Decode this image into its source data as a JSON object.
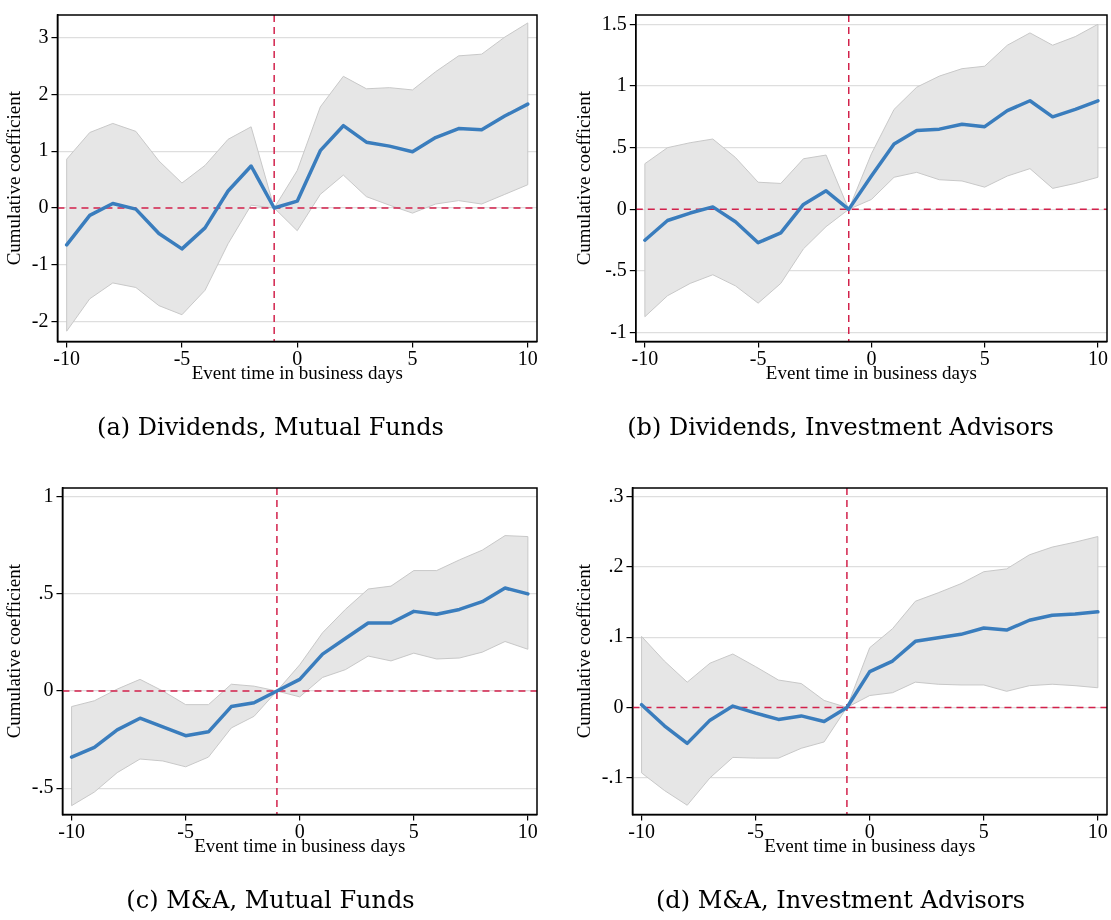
{
  "chart_data": [
    {
      "type": "line",
      "title": "(a) Dividends, Mutual Funds",
      "xlabel": "Event time in business days",
      "ylabel": "Cumulative coefficient",
      "x": [
        -10,
        -9,
        -8,
        -7,
        -6,
        -5,
        -4,
        -3,
        -2,
        -1,
        0,
        1,
        2,
        3,
        4,
        5,
        6,
        7,
        8,
        9,
        10
      ],
      "series": [
        {
          "color": "#3a7dbd",
          "values": [
            -0.65,
            -0.13,
            0.08,
            -0.02,
            -0.45,
            -0.72,
            -0.35,
            0.3,
            0.74,
            0,
            0.12,
            1.01,
            1.45,
            1.16,
            1.09,
            0.99,
            1.24,
            1.4,
            1.38,
            1.62,
            1.83
          ],
          "lower": [
            -2.17,
            -1.6,
            -1.32,
            -1.4,
            -1.72,
            -1.88,
            -1.45,
            -0.63,
            0.05,
            0,
            -0.4,
            0.24,
            0.58,
            0.2,
            0.05,
            -0.09,
            0.07,
            0.13,
            0.07,
            0.24,
            0.41
          ],
          "upper": [
            0.86,
            1.33,
            1.49,
            1.35,
            0.83,
            0.44,
            0.75,
            1.21,
            1.43,
            0,
            0.66,
            1.78,
            2.32,
            2.1,
            2.12,
            2.08,
            2.4,
            2.68,
            2.71,
            3.01,
            3.26
          ]
        }
      ],
      "xlim": [
        -10.4,
        10.4
      ],
      "xticks": [
        -10,
        -5,
        0,
        5,
        10
      ],
      "ylim": [
        -2.35,
        3.4
      ],
      "yticks": [
        -2,
        -1,
        0,
        1,
        2,
        3
      ],
      "grid": "y",
      "marker": "none",
      "ref_lines": [
        {
          "axis": "x",
          "value": -1,
          "color": "#d2214b",
          "line_style": "dashed"
        },
        {
          "axis": "y",
          "value": 0,
          "color": "#d2214b",
          "line_style": "dashed"
        }
      ]
    },
    {
      "type": "line",
      "title": "(b) Dividends, Investment Advisors",
      "xlabel": "Event time in business days",
      "ylabel": "Cumulative coefficient",
      "x": [
        -10,
        -9,
        -8,
        -7,
        -6,
        -5,
        -4,
        -3,
        -2,
        -1,
        0,
        1,
        2,
        3,
        4,
        5,
        6,
        7,
        8,
        9,
        10
      ],
      "series": [
        {
          "color": "#3a7dbd",
          "values": [
            -0.25,
            -0.09,
            -0.03,
            0.02,
            -0.1,
            -0.27,
            -0.19,
            0.04,
            0.15,
            0,
            0.27,
            0.53,
            0.64,
            0.65,
            0.69,
            0.67,
            0.8,
            0.88,
            0.75,
            0.81,
            0.88
          ],
          "lower": [
            -0.87,
            -0.7,
            -0.6,
            -0.53,
            -0.62,
            -0.76,
            -0.6,
            -0.32,
            -0.14,
            0,
            0.08,
            0.26,
            0.3,
            0.24,
            0.23,
            0.18,
            0.27,
            0.33,
            0.17,
            0.21,
            0.26
          ],
          "upper": [
            0.37,
            0.5,
            0.54,
            0.57,
            0.42,
            0.22,
            0.21,
            0.41,
            0.44,
            0,
            0.45,
            0.81,
            0.99,
            1.08,
            1.14,
            1.16,
            1.33,
            1.43,
            1.33,
            1.4,
            1.5
          ]
        }
      ],
      "xlim": [
        -10.4,
        10.4
      ],
      "xticks": [
        -10,
        -5,
        0,
        5,
        10
      ],
      "ylim": [
        -1.07,
        1.575
      ],
      "yticks": [
        -1,
        {
          "value": -0.5,
          "label": "-.5"
        },
        0,
        {
          "value": 0.5,
          "label": ".5"
        },
        1,
        1.5
      ],
      "grid": "y",
      "marker": "none",
      "ref_lines": [
        {
          "axis": "x",
          "value": -1,
          "color": "#d2214b",
          "line_style": "dashed"
        },
        {
          "axis": "y",
          "value": 0,
          "color": "#d2214b",
          "line_style": "dashed"
        }
      ]
    },
    {
      "type": "line",
      "title": "(c) M&A, Mutual Funds",
      "xlabel": "Event time in business days",
      "ylabel": "Cumulative coefficient",
      "x": [
        -10,
        -9,
        -8,
        -7,
        -6,
        -5,
        -4,
        -3,
        -2,
        -1,
        0,
        1,
        2,
        3,
        4,
        5,
        6,
        7,
        8,
        9,
        10
      ],
      "series": [
        {
          "color": "#3a7dbd",
          "values": [
            -0.34,
            -0.29,
            -0.2,
            -0.14,
            -0.185,
            -0.23,
            -0.21,
            -0.08,
            -0.06,
            0,
            0.06,
            0.19,
            0.27,
            0.35,
            0.35,
            0.41,
            0.395,
            0.42,
            0.46,
            0.53,
            0.5
          ],
          "lower": [
            -0.59,
            -0.52,
            -0.42,
            -0.35,
            -0.36,
            -0.39,
            -0.34,
            -0.19,
            -0.13,
            0,
            -0.03,
            0.07,
            0.11,
            0.18,
            0.155,
            0.195,
            0.165,
            0.17,
            0.2,
            0.255,
            0.215
          ],
          "upper": [
            -0.08,
            -0.05,
            0.01,
            0.06,
            0.0,
            -0.07,
            -0.07,
            0.035,
            0.025,
            0,
            0.135,
            0.3,
            0.42,
            0.525,
            0.54,
            0.62,
            0.62,
            0.675,
            0.725,
            0.8,
            0.795
          ]
        }
      ],
      "xlim": [
        -10.4,
        10.4
      ],
      "xticks": [
        -10,
        -5,
        0,
        5,
        10
      ],
      "ylim": [
        -0.635,
        1.045
      ],
      "yticks": [
        {
          "value": -0.5,
          "label": "-.5"
        },
        0,
        {
          "value": 0.5,
          "label": ".5"
        },
        1
      ],
      "grid": "y",
      "marker": "none",
      "ref_lines": [
        {
          "axis": "x",
          "value": -1,
          "color": "#d2214b",
          "line_style": "dashed"
        },
        {
          "axis": "y",
          "value": 0,
          "color": "#d2214b",
          "line_style": "dashed"
        }
      ]
    },
    {
      "type": "line",
      "title": "(d) M&A, Investment Advisors",
      "xlabel": "Event time in business days",
      "ylabel": "Cumulative coefficient",
      "x": [
        -10,
        -9,
        -8,
        -7,
        -6,
        -5,
        -4,
        -3,
        -2,
        -1,
        0,
        1,
        2,
        3,
        4,
        5,
        6,
        7,
        8,
        9,
        10
      ],
      "series": [
        {
          "color": "#3a7dbd",
          "values": [
            0.004,
            -0.026,
            -0.051,
            -0.018,
            0.002,
            -0.008,
            -0.017,
            -0.012,
            -0.02,
            0,
            0.051,
            0.066,
            0.094,
            0.099,
            0.104,
            0.113,
            0.11,
            0.124,
            0.131,
            0.133,
            0.136
          ],
          "lower": [
            -0.093,
            -0.118,
            -0.139,
            -0.1,
            -0.071,
            -0.072,
            -0.072,
            -0.058,
            -0.049,
            0,
            0.017,
            0.021,
            0.036,
            0.033,
            0.032,
            0.032,
            0.023,
            0.031,
            0.033,
            0.031,
            0.028
          ],
          "upper": [
            0.101,
            0.066,
            0.036,
            0.063,
            0.076,
            0.058,
            0.039,
            0.034,
            0.01,
            0,
            0.085,
            0.112,
            0.151,
            0.163,
            0.176,
            0.193,
            0.197,
            0.217,
            0.228,
            0.235,
            0.243
          ]
        }
      ],
      "xlim": [
        -10.4,
        10.4
      ],
      "xticks": [
        -10,
        -5,
        0,
        5,
        10
      ],
      "ylim": [
        -0.152,
        0.312
      ],
      "yticks": [
        {
          "value": -0.1,
          "label": "-.1"
        },
        0,
        {
          "value": 0.1,
          "label": ".1"
        },
        {
          "value": 0.2,
          "label": ".2"
        },
        {
          "value": 0.3,
          "label": ".3"
        }
      ],
      "grid": "y",
      "marker": "none",
      "ref_lines": [
        {
          "axis": "x",
          "value": -1,
          "color": "#d2214b",
          "line_style": "dashed"
        },
        {
          "axis": "y",
          "value": 0,
          "color": "#d2214b",
          "line_style": "dashed"
        }
      ]
    }
  ]
}
